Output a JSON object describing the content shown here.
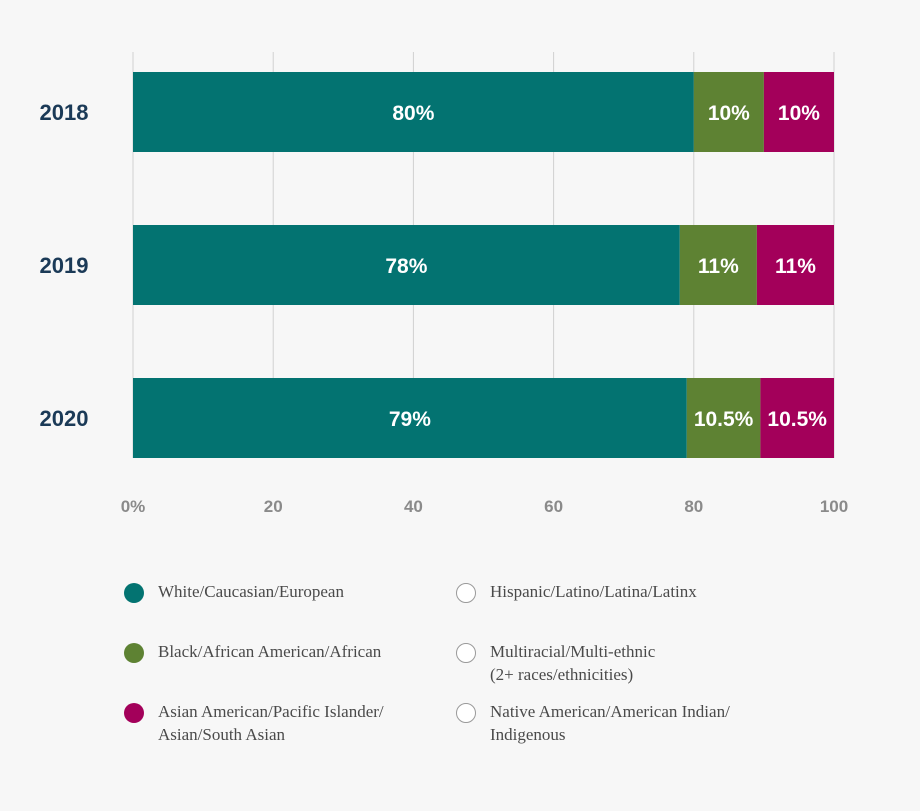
{
  "chart_data": {
    "type": "bar",
    "orientation": "horizontal",
    "stacked": true,
    "categories": [
      "2018",
      "2019",
      "2020"
    ],
    "series": [
      {
        "name": "White/Caucasian/European",
        "values": [
          80,
          78,
          79
        ],
        "labels": [
          "80%",
          "78%",
          "79%"
        ],
        "color": "#037371"
      },
      {
        "name": "Black/African American/African",
        "values": [
          10,
          11,
          10.5
        ],
        "labels": [
          "10%",
          "11%",
          "10.5%"
        ],
        "color": "#5e8233"
      },
      {
        "name": "Asian American/Pacific Islander/\nAsian/South Asian",
        "values": [
          10,
          11,
          10.5
        ],
        "labels": [
          "10%",
          "11%",
          "10.5%"
        ],
        "color": "#a3005a"
      },
      {
        "name": "Hispanic/Latino/Latina/Latinx",
        "values": [
          0,
          0,
          0
        ],
        "color": "#ffffff"
      },
      {
        "name": "Multiracial/Multi-ethnic\n(2+ races/ethnicities)",
        "values": [
          0,
          0,
          0
        ],
        "color": "#ffffff"
      },
      {
        "name": "Native American/American Indian/\nIndigenous",
        "values": [
          0,
          0,
          0
        ],
        "color": "#ffffff"
      }
    ],
    "x_ticks": [
      "0%",
      "20",
      "40",
      "60",
      "80",
      "100"
    ],
    "xlim": [
      0,
      100
    ],
    "grid": true,
    "legend_position": "bottom"
  },
  "colors": {
    "category_text": "#1b3a57",
    "tick_text": "#8a8a8a",
    "grid": "#d0d0d0"
  }
}
